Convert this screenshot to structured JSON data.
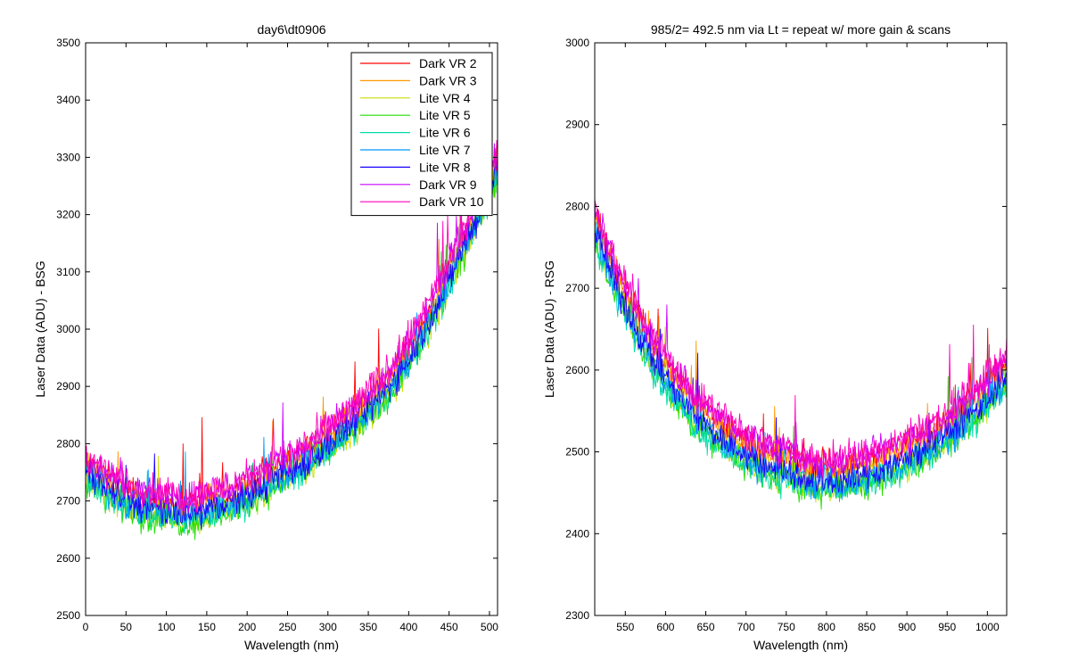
{
  "chart_data": [
    {
      "type": "line",
      "title": "day6\\dt0906",
      "xlabel": "Wavelength (nm)",
      "ylabel": "Laser Data (ADU) - BSG",
      "xlim": [
        0,
        510
      ],
      "ylim": [
        2500,
        3500
      ],
      "xticks": [
        0,
        50,
        100,
        150,
        200,
        250,
        300,
        350,
        400,
        450,
        500
      ],
      "yticks": [
        2500,
        2600,
        2700,
        2800,
        2900,
        3000,
        3100,
        3200,
        3300,
        3400,
        3500
      ],
      "legend": "top-right",
      "grid": false,
      "x": [
        0,
        25,
        50,
        75,
        100,
        125,
        150,
        175,
        200,
        225,
        250,
        275,
        300,
        325,
        350,
        375,
        400,
        425,
        450,
        475,
        500,
        510
      ],
      "series": [
        {
          "name": "Dark VR 2",
          "color": "#ff0000",
          "values": [
            2765,
            2738,
            2718,
            2705,
            2700,
            2694,
            2702,
            2712,
            2728,
            2748,
            2768,
            2788,
            2815,
            2845,
            2878,
            2915,
            2968,
            3030,
            3105,
            3185,
            3260,
            3300
          ]
        },
        {
          "name": "Dark VR 3",
          "color": "#ff9900",
          "values": [
            2760,
            2733,
            2713,
            2700,
            2695,
            2689,
            2697,
            2707,
            2723,
            2743,
            2763,
            2783,
            2810,
            2840,
            2873,
            2910,
            2963,
            3025,
            3100,
            3180,
            3255,
            3295
          ]
        },
        {
          "name": "Lite VR 4",
          "color": "#ccdd00",
          "values": [
            2740,
            2712,
            2690,
            2676,
            2670,
            2664,
            2672,
            2682,
            2698,
            2718,
            2738,
            2758,
            2786,
            2815,
            2848,
            2885,
            2938,
            3000,
            3075,
            3155,
            3230,
            3270
          ]
        },
        {
          "name": "Lite VR 5",
          "color": "#22dd00",
          "values": [
            2738,
            2710,
            2688,
            2674,
            2668,
            2662,
            2670,
            2680,
            2696,
            2716,
            2736,
            2756,
            2784,
            2813,
            2846,
            2883,
            2936,
            2998,
            3073,
            3153,
            3228,
            3268
          ]
        },
        {
          "name": "Lite VR 6",
          "color": "#00ddaa",
          "values": [
            2742,
            2714,
            2692,
            2678,
            2672,
            2666,
            2674,
            2684,
            2700,
            2720,
            2740,
            2760,
            2788,
            2817,
            2850,
            2887,
            2940,
            3002,
            3077,
            3157,
            3232,
            3272
          ]
        },
        {
          "name": "Lite VR 7",
          "color": "#0099ff",
          "values": [
            2748,
            2720,
            2698,
            2684,
            2678,
            2672,
            2680,
            2690,
            2706,
            2726,
            2746,
            2766,
            2794,
            2823,
            2856,
            2893,
            2946,
            3008,
            3083,
            3163,
            3238,
            3278
          ]
        },
        {
          "name": "Lite VR 8",
          "color": "#1a00ff",
          "values": [
            2752,
            2724,
            2702,
            2688,
            2682,
            2676,
            2684,
            2694,
            2710,
            2730,
            2750,
            2770,
            2798,
            2827,
            2860,
            2897,
            2950,
            3012,
            3087,
            3167,
            3242,
            3282
          ]
        },
        {
          "name": "Dark VR 9",
          "color": "#cc00ff",
          "values": [
            2775,
            2748,
            2728,
            2715,
            2710,
            2704,
            2712,
            2722,
            2738,
            2758,
            2778,
            2798,
            2825,
            2855,
            2888,
            2925,
            2978,
            3040,
            3115,
            3195,
            3270,
            3310
          ]
        },
        {
          "name": "Dark VR 10",
          "color": "#ff00bb",
          "values": [
            2780,
            2753,
            2733,
            2720,
            2715,
            2709,
            2717,
            2727,
            2743,
            2763,
            2783,
            2803,
            2830,
            2860,
            2893,
            2930,
            2983,
            3045,
            3120,
            3200,
            3275,
            3315
          ]
        }
      ]
    },
    {
      "type": "line",
      "title": "985/2= 492.5 nm via Lt = repeat w/ more gain & scans",
      "xlabel": "Wavelength (nm)",
      "ylabel": "Laser Data (ADU) - RSG",
      "xlim": [
        512,
        1024
      ],
      "ylim": [
        2300,
        3000
      ],
      "xticks": [
        550,
        600,
        650,
        700,
        750,
        800,
        850,
        900,
        950,
        1000
      ],
      "yticks": [
        2300,
        2400,
        2500,
        2600,
        2700,
        2800,
        2900,
        3000
      ],
      "legend": "none",
      "grid": false,
      "x": [
        512,
        537,
        562,
        587,
        612,
        637,
        662,
        687,
        712,
        737,
        762,
        787,
        812,
        837,
        862,
        887,
        912,
        937,
        962,
        987,
        1012,
        1024
      ],
      "series": [
        {
          "name": "Dark VR 2",
          "color": "#ff0000",
          "values": [
            2790,
            2725,
            2672,
            2628,
            2592,
            2562,
            2540,
            2522,
            2508,
            2498,
            2490,
            2484,
            2482,
            2486,
            2494,
            2505,
            2517,
            2530,
            2548,
            2570,
            2598,
            2610
          ]
        },
        {
          "name": "Dark VR 3",
          "color": "#ff9900",
          "values": [
            2785,
            2720,
            2667,
            2623,
            2587,
            2557,
            2535,
            2517,
            2503,
            2493,
            2485,
            2479,
            2477,
            2481,
            2489,
            2500,
            2512,
            2525,
            2543,
            2565,
            2593,
            2605
          ]
        },
        {
          "name": "Lite VR 4",
          "color": "#ccdd00",
          "values": [
            2765,
            2700,
            2647,
            2603,
            2567,
            2537,
            2515,
            2497,
            2483,
            2473,
            2465,
            2459,
            2457,
            2461,
            2469,
            2480,
            2492,
            2505,
            2523,
            2545,
            2573,
            2585
          ]
        },
        {
          "name": "Lite VR 5",
          "color": "#22dd00",
          "values": [
            2762,
            2697,
            2644,
            2600,
            2564,
            2534,
            2512,
            2494,
            2480,
            2470,
            2462,
            2456,
            2454,
            2458,
            2466,
            2477,
            2489,
            2502,
            2520,
            2542,
            2570,
            2582
          ]
        },
        {
          "name": "Lite VR 6",
          "color": "#00ddaa",
          "values": [
            2760,
            2695,
            2642,
            2598,
            2562,
            2532,
            2510,
            2492,
            2478,
            2468,
            2460,
            2454,
            2452,
            2456,
            2464,
            2475,
            2487,
            2500,
            2518,
            2540,
            2568,
            2580
          ]
        },
        {
          "name": "Lite VR 7",
          "color": "#0099ff",
          "values": [
            2768,
            2703,
            2650,
            2606,
            2570,
            2540,
            2518,
            2500,
            2486,
            2476,
            2468,
            2462,
            2460,
            2464,
            2472,
            2483,
            2495,
            2508,
            2526,
            2548,
            2576,
            2588
          ]
        },
        {
          "name": "Lite VR 8",
          "color": "#1a00ff",
          "values": [
            2772,
            2707,
            2654,
            2610,
            2574,
            2544,
            2522,
            2504,
            2490,
            2480,
            2472,
            2466,
            2464,
            2468,
            2476,
            2487,
            2499,
            2512,
            2530,
            2552,
            2580,
            2592
          ]
        },
        {
          "name": "Dark VR 9",
          "color": "#cc00ff",
          "values": [
            2795,
            2730,
            2677,
            2633,
            2597,
            2567,
            2545,
            2527,
            2513,
            2503,
            2495,
            2489,
            2487,
            2491,
            2499,
            2510,
            2522,
            2535,
            2553,
            2575,
            2603,
            2615
          ]
        },
        {
          "name": "Dark VR 10",
          "color": "#ff00bb",
          "values": [
            2800,
            2735,
            2682,
            2638,
            2602,
            2572,
            2550,
            2532,
            2518,
            2508,
            2500,
            2494,
            2492,
            2496,
            2504,
            2515,
            2527,
            2540,
            2558,
            2580,
            2608,
            2620
          ]
        }
      ]
    }
  ]
}
